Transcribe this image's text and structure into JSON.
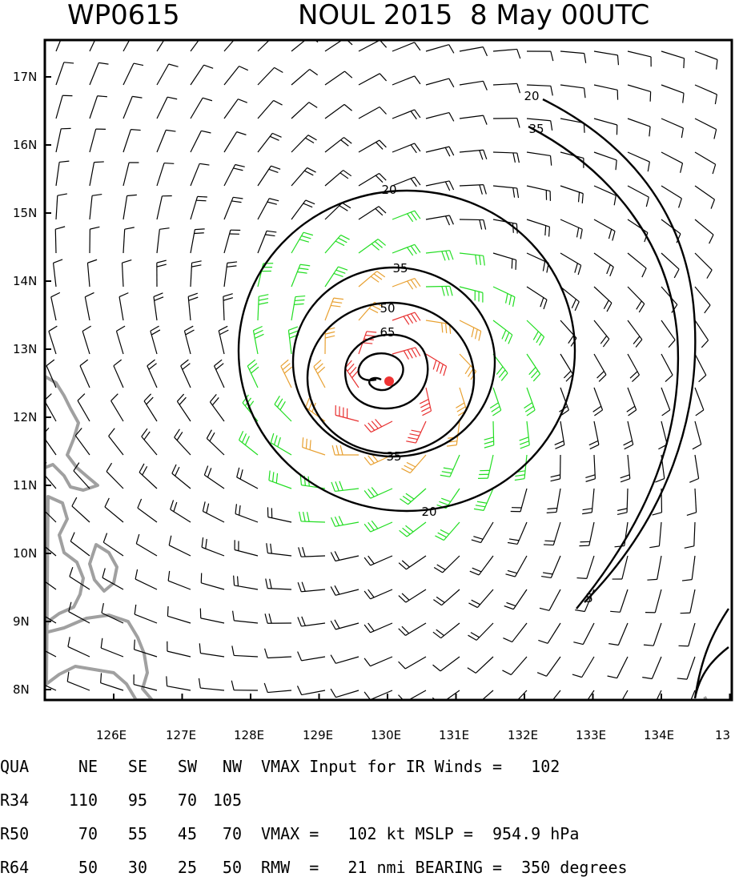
{
  "header": {
    "storm_id": "WP0615",
    "storm_info": "NOUL 2015  8 May 00UTC"
  },
  "map": {
    "lat_labels": [
      "17N",
      "16N",
      "15N",
      "14N",
      "13N",
      "12N",
      "11N",
      "10N",
      "9N",
      "8N"
    ],
    "lon_labels": [
      "126E",
      "127E",
      "128E",
      "129E",
      "130E",
      "131E",
      "132E",
      "133E",
      "134E",
      "13"
    ],
    "contour_labels": [
      "20",
      "35",
      "50",
      "65",
      "35",
      "20",
      "20",
      "35",
      "5"
    ],
    "colors": {
      "frame": "#000000",
      "barb_default": "#000000",
      "barb_34kt": "#22dd22",
      "barb_50kt": "#e8a030",
      "barb_64kt": "#e83030",
      "center": "#ee3333",
      "land": "#a0a0a0"
    }
  },
  "table": {
    "header": [
      "QUA",
      "NE",
      "SE",
      "SW",
      "NW"
    ],
    "rows": [
      {
        "label": "R34",
        "values": [
          "110",
          "95",
          "70",
          "105"
        ]
      },
      {
        "label": "R50",
        "values": [
          "70",
          "55",
          "45",
          "70"
        ]
      },
      {
        "label": "R64",
        "values": [
          "50",
          "30",
          "25",
          "50"
        ]
      }
    ]
  },
  "info": {
    "line1": "VMAX Input for IR Winds =   102",
    "line2": "VMAX =   102 kt MSLP =  954.9 hPa",
    "line3": "RMW  =   21 nmi BEARING =  350 degrees"
  }
}
